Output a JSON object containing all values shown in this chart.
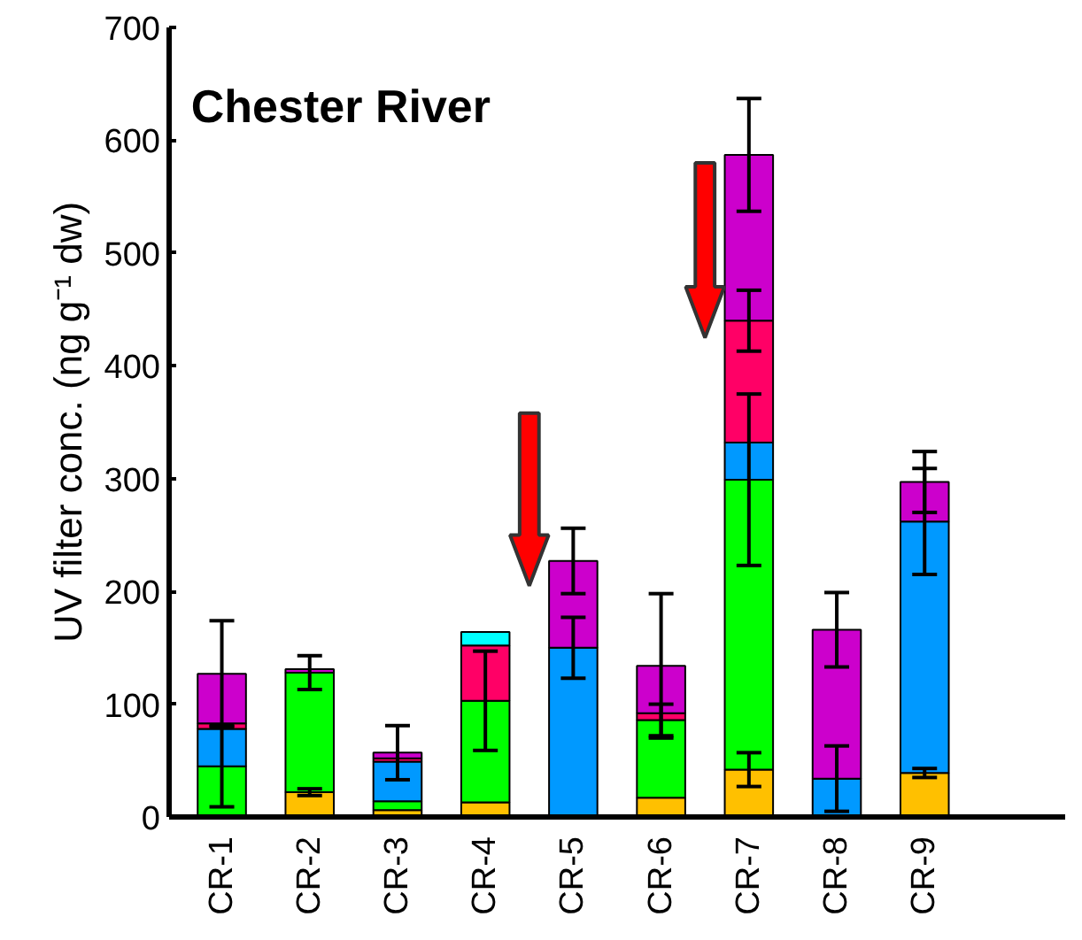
{
  "chart_data": {
    "type": "bar",
    "stacked": true,
    "title": "Chester River",
    "ylabel": "UV filter conc. (ng g⁻¹ dw)",
    "categories": [
      "CR-1",
      "CR-2",
      "CR-3",
      "CR-4",
      "CR-5",
      "CR-6",
      "CR-7",
      "CR-8",
      "CR-9",
      null
    ],
    "ylim": [
      0,
      700
    ],
    "yticks": [
      0,
      100,
      200,
      300,
      400,
      500,
      600,
      700
    ],
    "grid": false,
    "series": [
      {
        "color": "#ffc000",
        "values": [
          null,
          22,
          6,
          13,
          null,
          17,
          42,
          null,
          39,
          null
        ],
        "errors": [
          null,
          3,
          null,
          null,
          null,
          null,
          15,
          null,
          4,
          null
        ]
      },
      {
        "color": "#00ff00",
        "values": [
          45,
          106,
          8,
          90,
          null,
          69,
          257,
          null,
          null,
          null
        ],
        "errors": [
          36,
          15,
          null,
          44,
          null,
          14,
          76,
          null,
          null,
          null
        ]
      },
      {
        "color": "#0099ff",
        "values": [
          33,
          null,
          35,
          null,
          150,
          null,
          33,
          34,
          223,
          null
        ],
        "errors": [
          null,
          null,
          null,
          null,
          27,
          null,
          null,
          29,
          47,
          null
        ]
      },
      {
        "color": "#ff0066",
        "values": [
          5,
          null,
          3,
          49,
          null,
          6,
          108,
          null,
          null,
          null
        ],
        "errors": [
          null,
          null,
          null,
          null,
          null,
          null,
          27,
          null,
          null,
          null
        ]
      },
      {
        "color": "#cc00cc",
        "values": [
          44,
          3,
          5,
          null,
          77,
          42,
          147,
          132,
          35,
          null
        ],
        "errors": [
          47,
          null,
          24,
          null,
          29,
          64,
          50,
          33,
          27,
          null
        ]
      },
      {
        "color": "#00ffff",
        "values": [
          null,
          null,
          null,
          12,
          null,
          null,
          null,
          null,
          null,
          null
        ],
        "errors": [
          null,
          null,
          null,
          null,
          null,
          null,
          null,
          null,
          null,
          null
        ]
      }
    ]
  }
}
